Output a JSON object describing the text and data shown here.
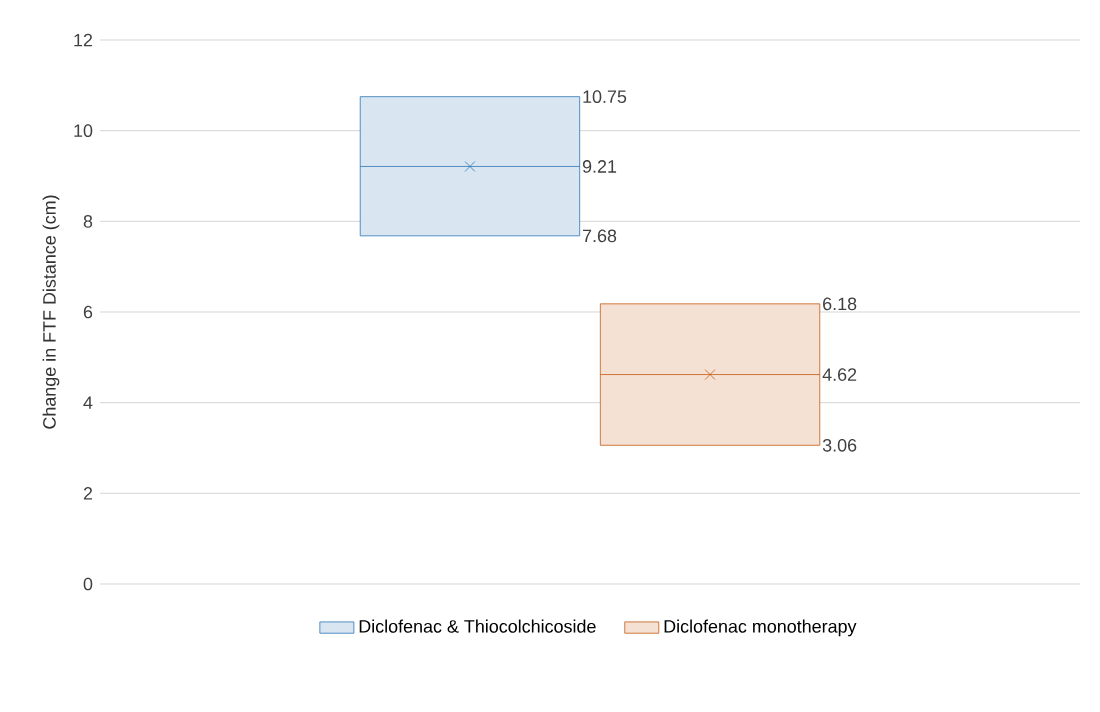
{
  "chart_data": {
    "type": "box",
    "ylabel": "Change in FTF Distance (cm)",
    "categories": [
      null
    ],
    "ylim": [
      0,
      12
    ],
    "yticks": [
      0,
      2,
      4,
      6,
      8,
      10,
      12
    ],
    "grid": "y",
    "legend": "bottom",
    "marker": "cross",
    "tick_labels": "y",
    "annotations": [
      "10.75",
      "9.21",
      "7.68",
      "6.18",
      "4.62",
      "3.06"
    ],
    "series": [
      {
        "name": "Diclofenac & Thiocolchicoside",
        "color": "#2e75b6",
        "boxes": [
          {
            "low": 7.68,
            "q1": 7.68,
            "median": 9.21,
            "q3": 10.75,
            "high": 10.75,
            "mean": 9.21
          }
        ]
      },
      {
        "name": "Diclofenac monotherapy",
        "color": "#c55a11",
        "boxes": [
          {
            "low": 3.06,
            "q1": 3.06,
            "median": 4.62,
            "q3": 6.18,
            "high": 6.18,
            "mean": 4.62
          }
        ]
      }
    ]
  }
}
